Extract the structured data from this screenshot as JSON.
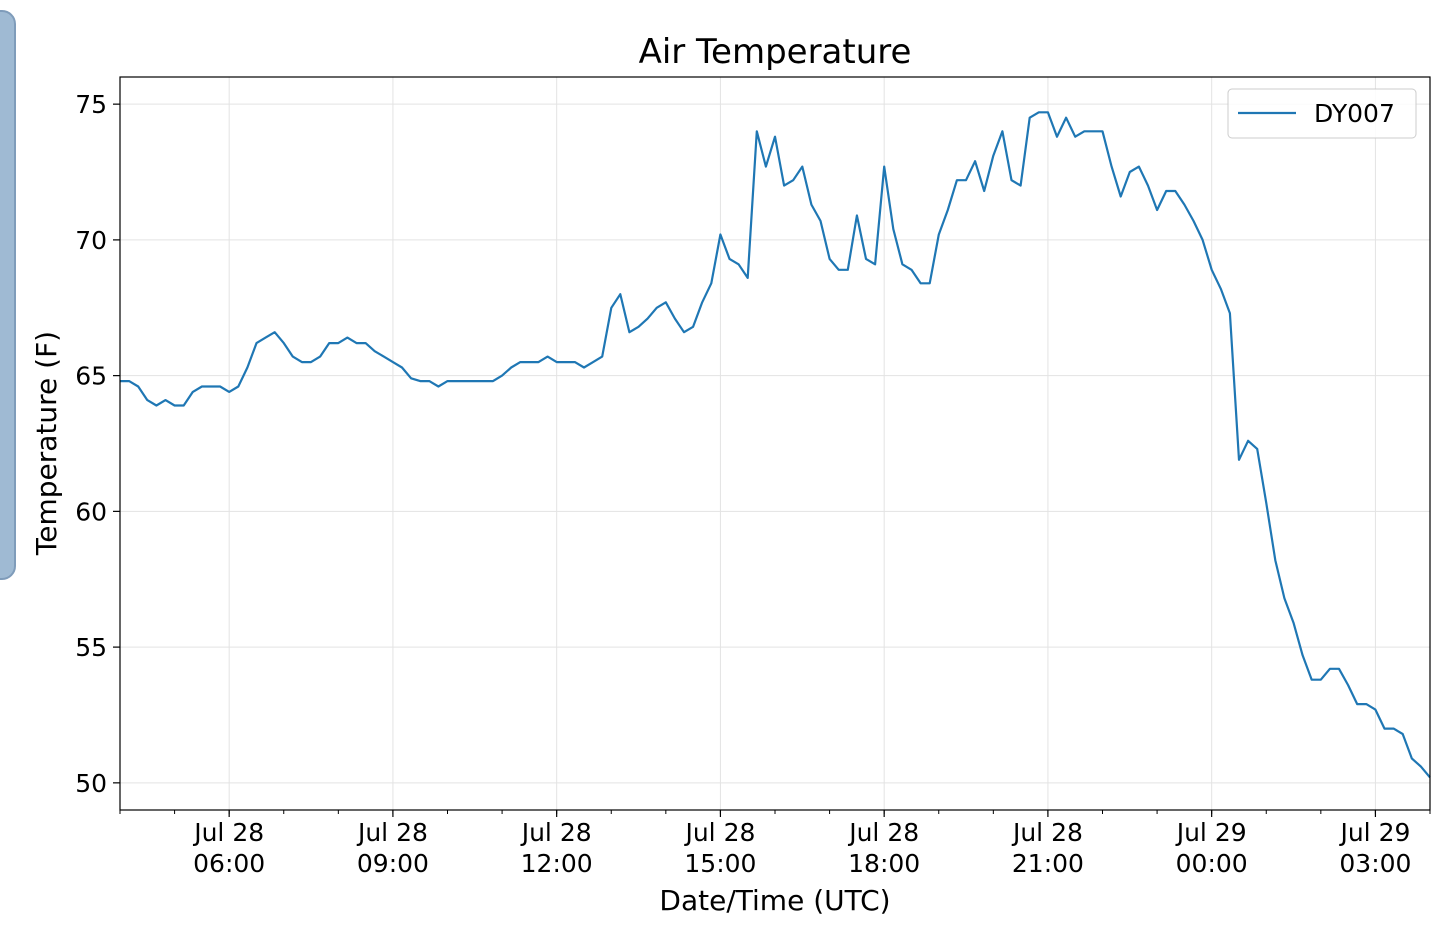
{
  "chart_data": {
    "type": "line",
    "title": "Air Temperature",
    "xlabel": "Date/Time (UTC)",
    "ylabel": "Temperature (F)",
    "ylim": [
      49,
      76
    ],
    "xlim": [
      "2017-07-28T04:00",
      "2017-07-29T04:00"
    ],
    "yticks": [
      50,
      55,
      60,
      65,
      70,
      75
    ],
    "xticks": [
      {
        "line1": "Jul 28",
        "line2": "06:00",
        "t": "2017-07-28T06:00"
      },
      {
        "line1": "Jul 28",
        "line2": "09:00",
        "t": "2017-07-28T09:00"
      },
      {
        "line1": "Jul 28",
        "line2": "12:00",
        "t": "2017-07-28T12:00"
      },
      {
        "line1": "Jul 28",
        "line2": "15:00",
        "t": "2017-07-28T15:00"
      },
      {
        "line1": "Jul 28",
        "line2": "18:00",
        "t": "2017-07-28T18:00"
      },
      {
        "line1": "Jul 28",
        "line2": "21:00",
        "t": "2017-07-28T21:00"
      },
      {
        "line1": "Jul 29",
        "line2": "00:00",
        "t": "2017-07-29T00:00"
      },
      {
        "line1": "Jul 29",
        "line2": "03:00",
        "t": "2017-07-29T03:00"
      }
    ],
    "grid": true,
    "legend_position": "top-right",
    "series": [
      {
        "name": "DY007",
        "color": "#1f77b4",
        "x": [
          "2017-07-28T04:00",
          "2017-07-28T04:10",
          "2017-07-28T04:20",
          "2017-07-28T04:30",
          "2017-07-28T04:40",
          "2017-07-28T04:50",
          "2017-07-28T05:00",
          "2017-07-28T05:10",
          "2017-07-28T05:20",
          "2017-07-28T05:30",
          "2017-07-28T05:40",
          "2017-07-28T05:50",
          "2017-07-28T06:00",
          "2017-07-28T06:10",
          "2017-07-28T06:20",
          "2017-07-28T06:30",
          "2017-07-28T06:40",
          "2017-07-28T06:50",
          "2017-07-28T07:00",
          "2017-07-28T07:10",
          "2017-07-28T07:20",
          "2017-07-28T07:30",
          "2017-07-28T07:40",
          "2017-07-28T07:50",
          "2017-07-28T08:00",
          "2017-07-28T08:10",
          "2017-07-28T08:20",
          "2017-07-28T08:30",
          "2017-07-28T08:40",
          "2017-07-28T08:50",
          "2017-07-28T09:00",
          "2017-07-28T09:10",
          "2017-07-28T09:20",
          "2017-07-28T09:30",
          "2017-07-28T09:40",
          "2017-07-28T09:50",
          "2017-07-28T10:00",
          "2017-07-28T10:10",
          "2017-07-28T10:20",
          "2017-07-28T10:30",
          "2017-07-28T10:40",
          "2017-07-28T10:50",
          "2017-07-28T11:00",
          "2017-07-28T11:10",
          "2017-07-28T11:20",
          "2017-07-28T11:30",
          "2017-07-28T11:40",
          "2017-07-28T11:50",
          "2017-07-28T12:00",
          "2017-07-28T12:10",
          "2017-07-28T12:20",
          "2017-07-28T12:30",
          "2017-07-28T12:40",
          "2017-07-28T12:50",
          "2017-07-28T13:00",
          "2017-07-28T13:10",
          "2017-07-28T13:20",
          "2017-07-28T13:30",
          "2017-07-28T13:40",
          "2017-07-28T13:50",
          "2017-07-28T14:00",
          "2017-07-28T14:10",
          "2017-07-28T14:20",
          "2017-07-28T14:30",
          "2017-07-28T14:40",
          "2017-07-28T14:50",
          "2017-07-28T15:00",
          "2017-07-28T15:10",
          "2017-07-28T15:20",
          "2017-07-28T15:30",
          "2017-07-28T15:40",
          "2017-07-28T15:50",
          "2017-07-28T16:00",
          "2017-07-28T16:10",
          "2017-07-28T16:20",
          "2017-07-28T16:30",
          "2017-07-28T16:40",
          "2017-07-28T16:50",
          "2017-07-28T17:00",
          "2017-07-28T17:10",
          "2017-07-28T17:20",
          "2017-07-28T17:30",
          "2017-07-28T17:40",
          "2017-07-28T17:50",
          "2017-07-28T18:00",
          "2017-07-28T18:10",
          "2017-07-28T18:20",
          "2017-07-28T18:30",
          "2017-07-28T18:40",
          "2017-07-28T18:50",
          "2017-07-28T19:00",
          "2017-07-28T19:10",
          "2017-07-28T19:20",
          "2017-07-28T19:30",
          "2017-07-28T19:40",
          "2017-07-28T19:50",
          "2017-07-28T20:00",
          "2017-07-28T20:10",
          "2017-07-28T20:20",
          "2017-07-28T20:30",
          "2017-07-28T20:40",
          "2017-07-28T20:50",
          "2017-07-28T21:00",
          "2017-07-28T21:10",
          "2017-07-28T21:20",
          "2017-07-28T21:30",
          "2017-07-28T21:40",
          "2017-07-28T21:50",
          "2017-07-28T22:00",
          "2017-07-28T22:10",
          "2017-07-28T22:20",
          "2017-07-28T22:30",
          "2017-07-28T22:40",
          "2017-07-28T22:50",
          "2017-07-28T23:00",
          "2017-07-28T23:10",
          "2017-07-28T23:20",
          "2017-07-28T23:30",
          "2017-07-28T23:40",
          "2017-07-28T23:50",
          "2017-07-29T00:00",
          "2017-07-29T00:10",
          "2017-07-29T00:20",
          "2017-07-29T00:30",
          "2017-07-29T00:40",
          "2017-07-29T00:50",
          "2017-07-29T01:00",
          "2017-07-29T01:10",
          "2017-07-29T01:20",
          "2017-07-29T01:30",
          "2017-07-29T01:40",
          "2017-07-29T01:50",
          "2017-07-29T02:00",
          "2017-07-29T02:10",
          "2017-07-29T02:20",
          "2017-07-29T02:30",
          "2017-07-29T02:40",
          "2017-07-29T02:50",
          "2017-07-29T03:00",
          "2017-07-29T03:10",
          "2017-07-29T03:20",
          "2017-07-29T03:30",
          "2017-07-29T03:40",
          "2017-07-29T03:50",
          "2017-07-29T04:00"
        ],
        "y": [
          64.8,
          64.8,
          64.6,
          64.1,
          63.9,
          64.1,
          63.9,
          63.9,
          64.4,
          64.6,
          64.6,
          64.6,
          64.4,
          64.6,
          65.3,
          66.2,
          66.4,
          66.6,
          66.2,
          65.7,
          65.5,
          65.5,
          65.7,
          66.2,
          66.2,
          66.4,
          66.2,
          66.2,
          65.9,
          65.7,
          65.5,
          65.3,
          64.9,
          64.8,
          64.8,
          64.6,
          64.8,
          64.8,
          64.8,
          64.8,
          64.8,
          64.8,
          65.0,
          65.3,
          65.5,
          65.5,
          65.5,
          65.7,
          65.5,
          65.5,
          65.5,
          65.3,
          65.5,
          65.7,
          67.5,
          68.0,
          66.6,
          66.8,
          67.1,
          67.5,
          67.7,
          67.1,
          66.6,
          66.8,
          67.7,
          68.4,
          70.2,
          69.3,
          69.1,
          68.6,
          74.0,
          72.7,
          73.8,
          72.0,
          72.2,
          72.7,
          71.3,
          70.7,
          69.3,
          68.9,
          68.9,
          70.9,
          69.3,
          69.1,
          72.7,
          70.4,
          69.1,
          68.9,
          68.4,
          68.4,
          70.2,
          71.1,
          72.2,
          72.2,
          72.9,
          71.8,
          73.1,
          74.0,
          72.2,
          72.0,
          74.5,
          74.7,
          74.7,
          73.8,
          74.5,
          73.8,
          74.0,
          74.0,
          74.0,
          72.7,
          71.6,
          72.5,
          72.7,
          72.0,
          71.1,
          71.8,
          71.8,
          71.3,
          70.7,
          70.0,
          68.9,
          68.2,
          67.3,
          61.9,
          62.6,
          62.3,
          60.3,
          58.2,
          56.8,
          55.9,
          54.7,
          53.8,
          53.8,
          54.2,
          54.2,
          53.6,
          52.9,
          52.9,
          52.7,
          52.0,
          52.0,
          51.8,
          50.9,
          50.6,
          50.2
        ]
      }
    ]
  }
}
